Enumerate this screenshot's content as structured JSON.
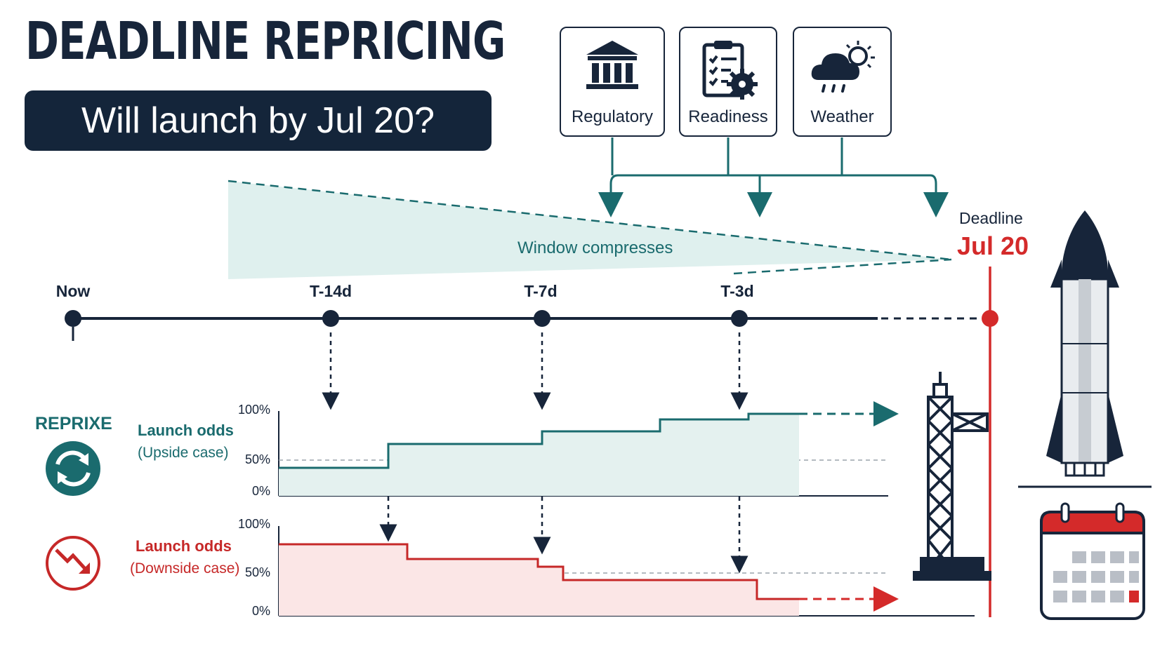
{
  "header": {
    "title": "DEADLINE REPRICING",
    "question": "Will launch by Jul 20?"
  },
  "factors": [
    {
      "label": "Regulatory",
      "icon": "government-building-icon"
    },
    {
      "label": "Readiness",
      "icon": "clipboard-gear-icon"
    },
    {
      "label": "Weather",
      "icon": "rain-cloud-sun-icon"
    }
  ],
  "window": {
    "label": "Window compresses"
  },
  "deadline": {
    "label": "Deadline",
    "date": "Jul 20",
    "color": "#d42a2a"
  },
  "timeline": {
    "ticks": [
      "Now",
      "T-14d",
      "T-7d",
      "T-3d"
    ]
  },
  "upside": {
    "logo_text": "REPRIXE",
    "title": "Launch odds",
    "subtitle": "(Upside case)",
    "color": "#1a6b6e",
    "axis_labels": [
      "100%",
      "50%",
      "0%"
    ]
  },
  "downside": {
    "title": "Launch odds",
    "subtitle": "(Downside case)",
    "color": "#c62828",
    "axis_labels": [
      "100%",
      "50%",
      "0%"
    ]
  },
  "colors": {
    "navy": "#17253a",
    "teal": "#1a6b6e",
    "red": "#d42a2a"
  }
}
